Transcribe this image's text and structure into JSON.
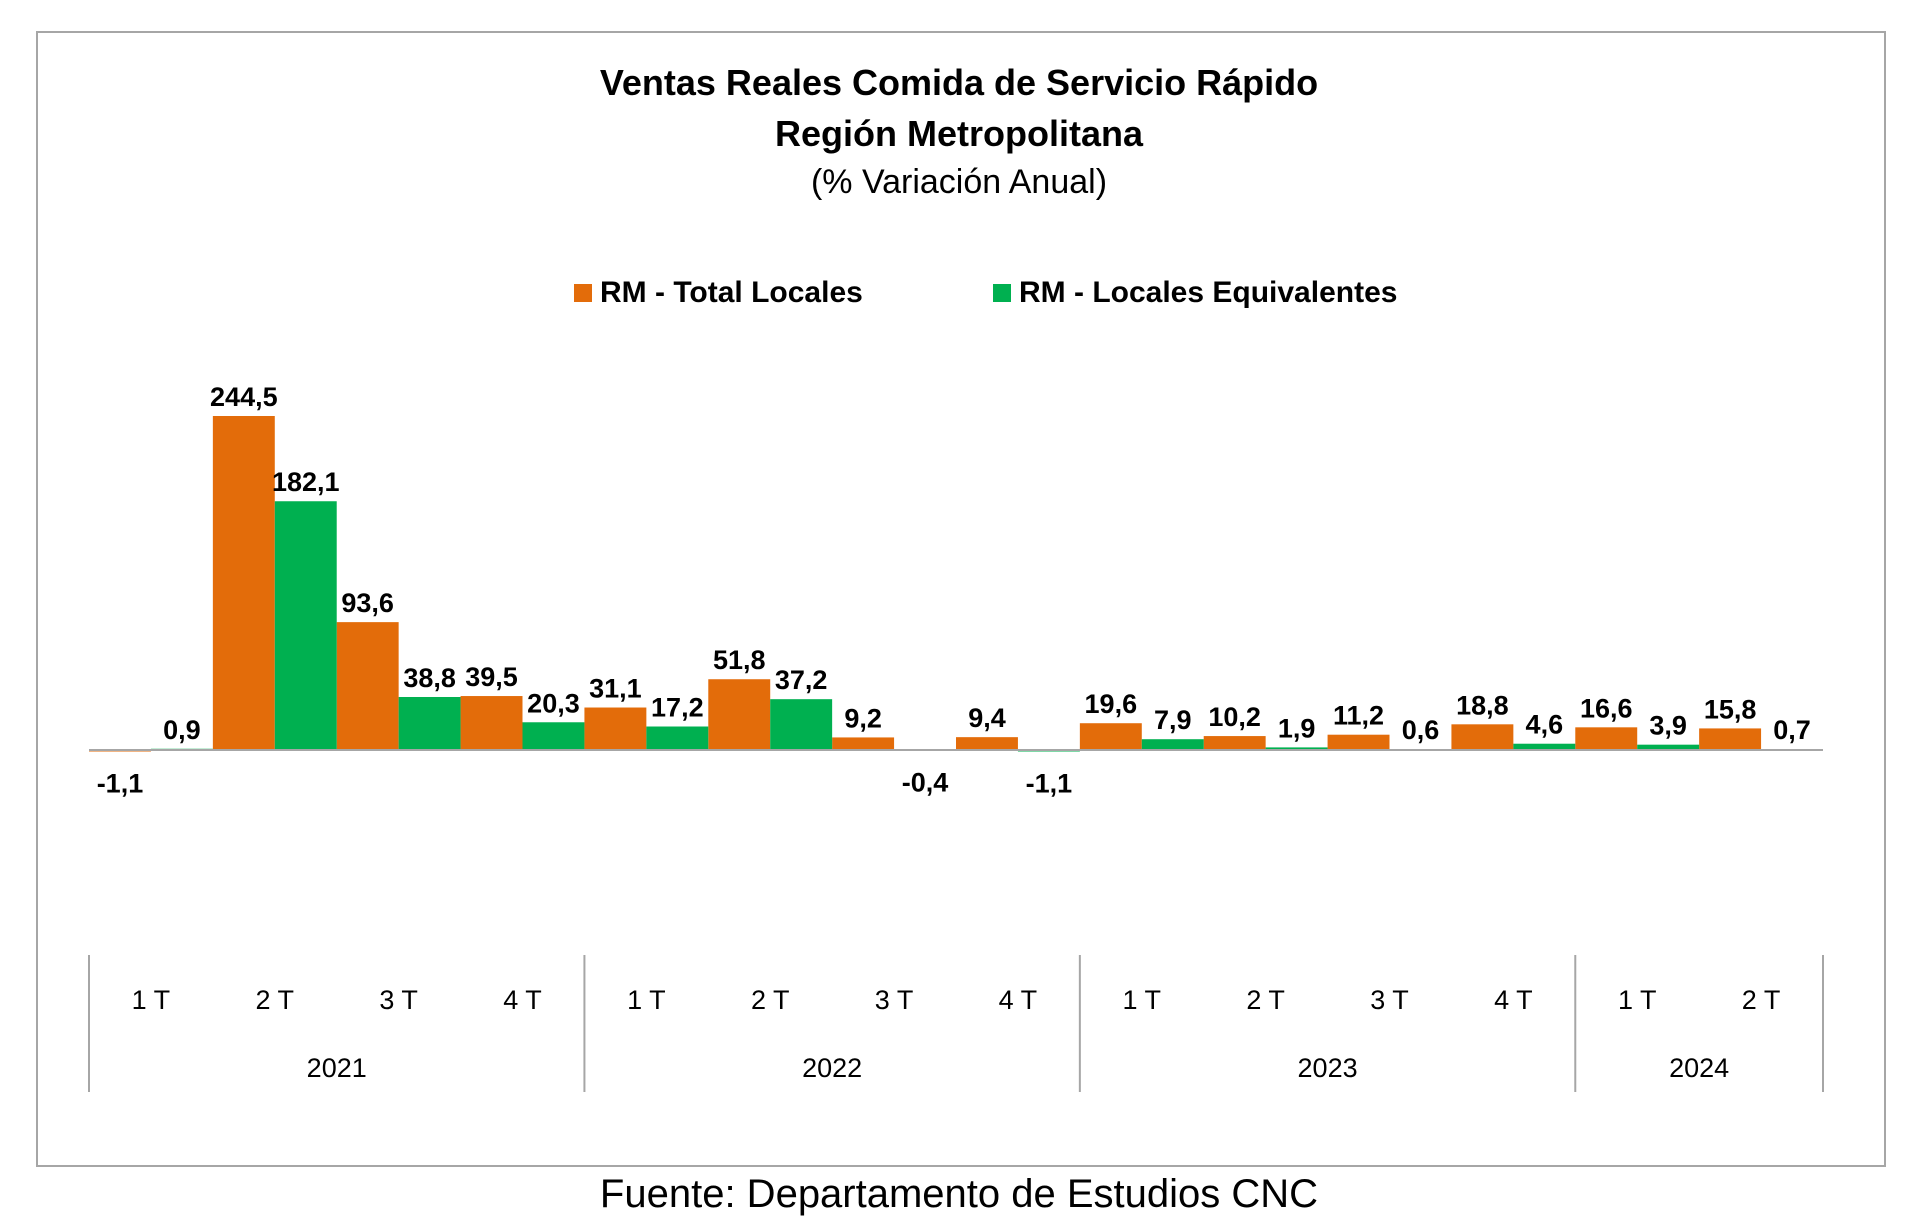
{
  "chart_data": {
    "type": "bar",
    "title": "Ventas Reales Comida de Servicio Rápido",
    "subtitle": "Región Metropolitana",
    "subtitle2": "(% Variación Anual)",
    "source": "Fuente: Departamento de Estudios CNC",
    "legend_position": "top-center",
    "categories": [
      "1 T",
      "2 T",
      "3 T",
      "4 T",
      "1 T",
      "2 T",
      "3 T",
      "4 T",
      "1 T",
      "2 T",
      "3 T",
      "4 T",
      "1 T",
      "2 T"
    ],
    "groups": [
      {
        "label": "2021",
        "count": 4
      },
      {
        "label": "2022",
        "count": 4
      },
      {
        "label": "2023",
        "count": 4
      },
      {
        "label": "2024",
        "count": 2
      }
    ],
    "series": [
      {
        "name": "RM - Total Locales",
        "color": "#e36c0a",
        "values": [
          -1.1,
          244.5,
          93.6,
          39.5,
          31.1,
          51.8,
          9.2,
          9.4,
          19.6,
          10.2,
          11.2,
          18.8,
          16.6,
          15.8
        ],
        "labels": [
          "-1,1",
          "244,5",
          "93,6",
          "39,5",
          "31,1",
          "51,8",
          "9,2",
          "9,4",
          "19,6",
          "10,2",
          "11,2",
          "18,8",
          "16,6",
          "15,8"
        ]
      },
      {
        "name": "RM - Locales Equivalentes",
        "color": "#00b050",
        "values": [
          0.9,
          182.1,
          38.8,
          20.3,
          17.2,
          37.2,
          -0.4,
          -1.1,
          7.9,
          1.9,
          0.6,
          4.6,
          3.9,
          0.7
        ],
        "labels": [
          "0,9",
          "182,1",
          "38,8",
          "20,3",
          "17,2",
          "37,2",
          "-0,4",
          "-1,1",
          "7,9",
          "1,9",
          "0,6",
          "4,6",
          "3,9",
          "0,7"
        ]
      }
    ],
    "axis_color": "#a6a6a6"
  }
}
